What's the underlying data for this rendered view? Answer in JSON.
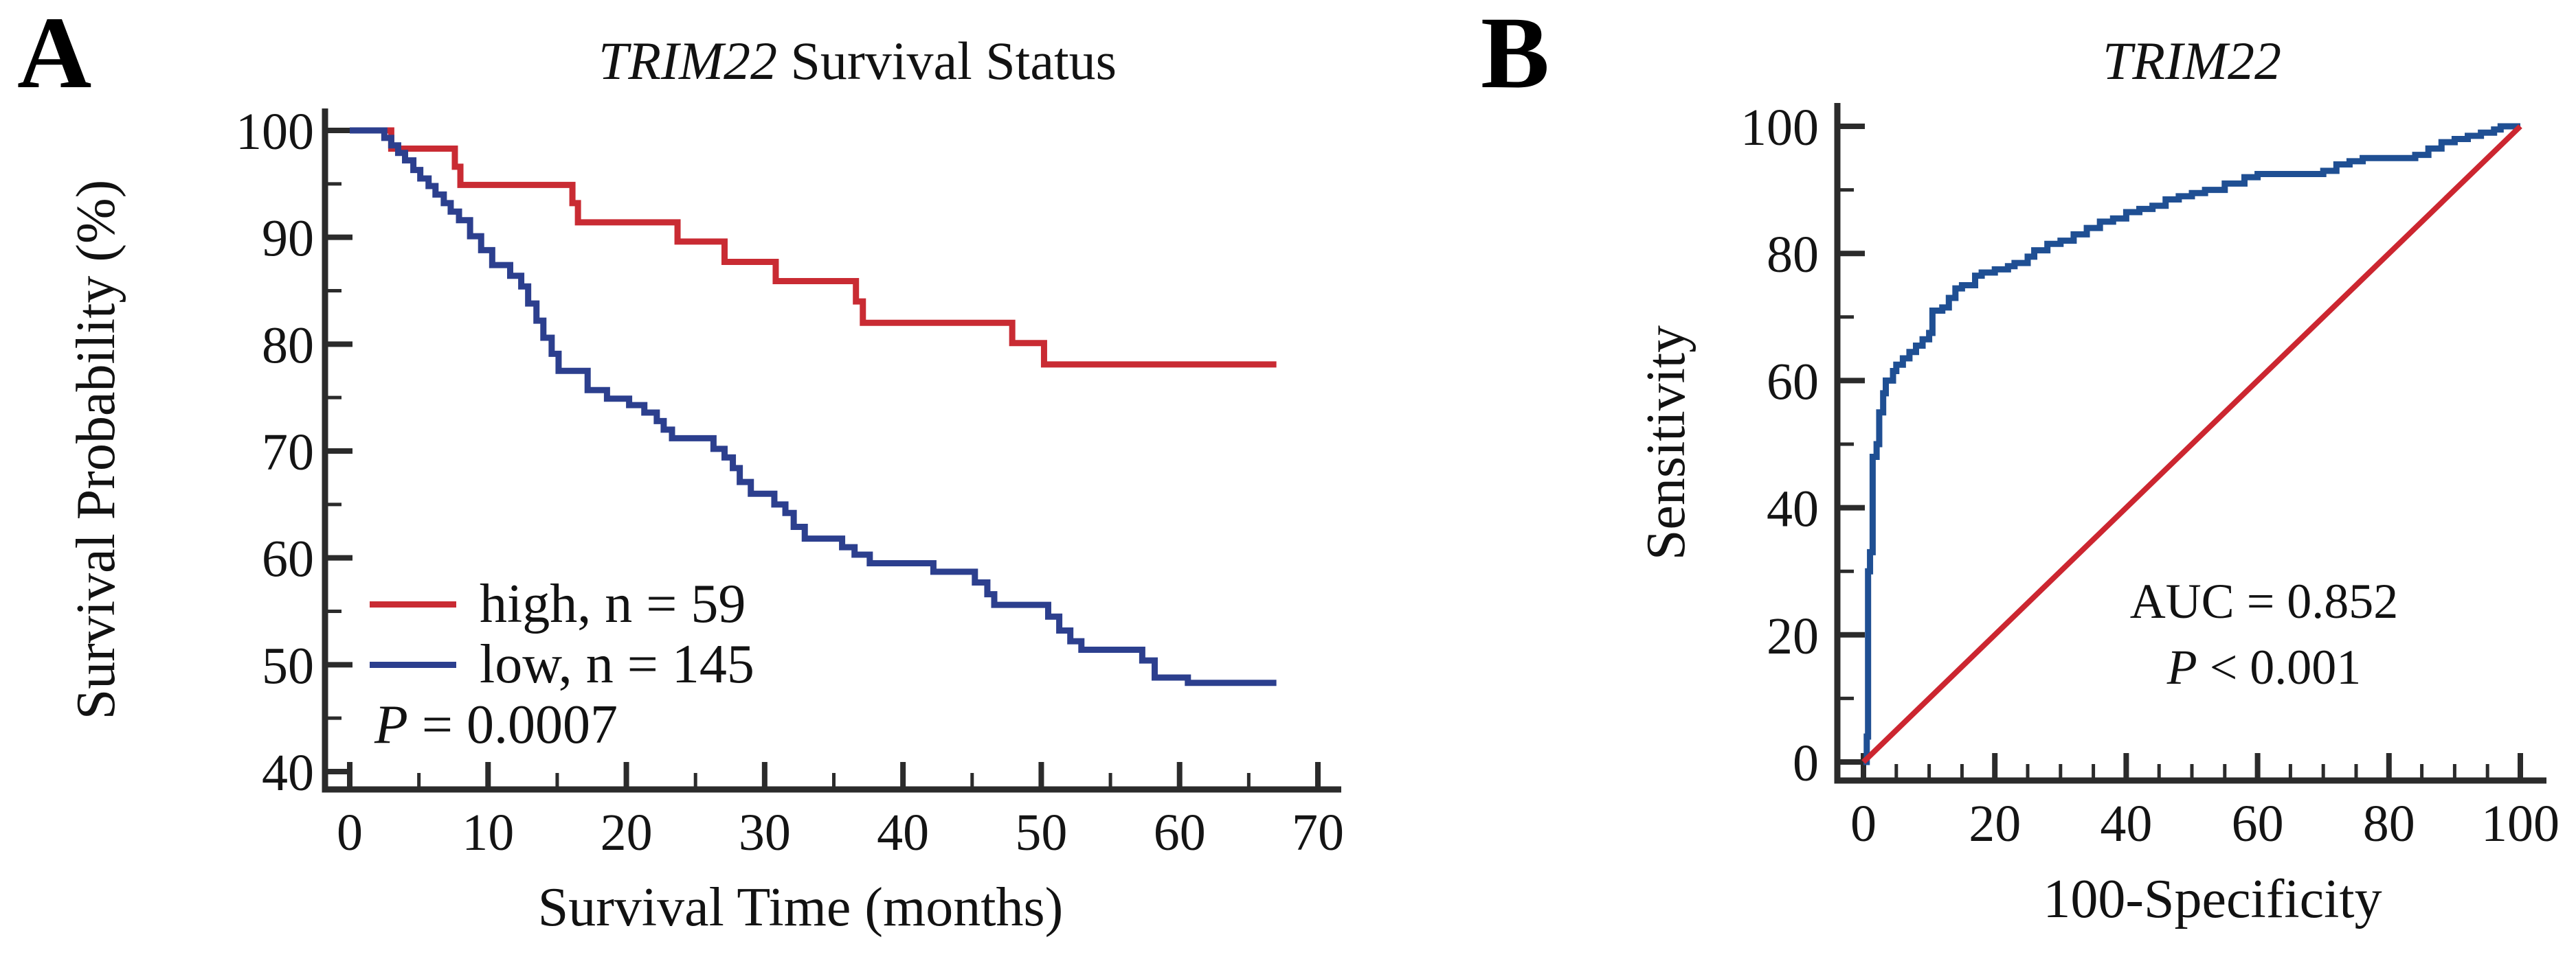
{
  "colors": {
    "km_high_red": "#c92b33",
    "km_low_blue": "#2c3f8e",
    "roc_blue": "#1f4f93",
    "reference_red": "#cc2630",
    "axis": "#2b2b2b",
    "text": "#121212"
  },
  "panels": [
    {
      "label": "A",
      "title": {
        "italic": "TRIM22",
        "rest": " Survival Status"
      },
      "x_axis_label": "Survival Time (months)",
      "y_axis_label": "Survival Probability (%)",
      "legend": [
        {
          "label": "high, n = 59"
        },
        {
          "label": "low, n = 145"
        }
      ],
      "p_value": {
        "italic": "P",
        "rest": " = 0.0007"
      }
    },
    {
      "label": "B",
      "title": {
        "italic": "TRIM22",
        "rest": ""
      },
      "x_axis_label": "100-Specificity",
      "y_axis_label": "Sensitivity",
      "annotation": {
        "auc": "AUC = 0.852",
        "p_italic": "P",
        "p_rest": " < 0.001"
      }
    }
  ],
  "chart_data": [
    {
      "type": "line",
      "subtype": "kaplan-meier-step",
      "title": "TRIM22 Survival Status",
      "xlabel": "Survival Time (months)",
      "ylabel": "Survival Probability (%)",
      "xlim": [
        0,
        70
      ],
      "ylim": [
        40,
        100
      ],
      "grid": false,
      "legend_position": "lower-left-inside",
      "x_major_ticks": [
        0,
        10,
        20,
        30,
        40,
        50,
        60,
        70
      ],
      "x_minor_ticks": [
        5,
        15,
        25,
        35,
        45,
        55,
        65
      ],
      "y_major_ticks": [
        40,
        50,
        60,
        70,
        80,
        90,
        100
      ],
      "y_minor_ticks": [
        45,
        55,
        65,
        75,
        85,
        95
      ],
      "annotation": "P = 0.0007",
      "series": [
        {
          "id": "km-high-curve",
          "name": "high, n = 59",
          "color": "#c92b33",
          "step": true,
          "points": [
            [
              0,
              100
            ],
            [
              3,
              98.3
            ],
            [
              7.6,
              96.6
            ],
            [
              8,
              94.9
            ],
            [
              16.1,
              93.2
            ],
            [
              16.5,
              91.4
            ],
            [
              23.7,
              89.6
            ],
            [
              27.1,
              87.7
            ],
            [
              30.8,
              85.9
            ],
            [
              36.6,
              84.0
            ],
            [
              37.1,
              82.0
            ],
            [
              47.9,
              80.1
            ],
            [
              50.2,
              78.1
            ],
            [
              67,
              78.1
            ]
          ]
        },
        {
          "id": "km-low-curve",
          "name": "low, n = 145",
          "color": "#2c3f8e",
          "step": true,
          "points": [
            [
              0,
              100
            ],
            [
              2.5,
              99.3
            ],
            [
              3,
              98.6
            ],
            [
              3.5,
              97.9
            ],
            [
              4,
              97.2
            ],
            [
              4.6,
              96.3
            ],
            [
              5.1,
              95.5
            ],
            [
              5.7,
              94.8
            ],
            [
              6.2,
              94.0
            ],
            [
              6.8,
              93.2
            ],
            [
              7.3,
              92.4
            ],
            [
              7.9,
              91.6
            ],
            [
              8.7,
              90.1
            ],
            [
              9.5,
              88.8
            ],
            [
              10.3,
              87.4
            ],
            [
              11.6,
              86.4
            ],
            [
              12.4,
              85.4
            ],
            [
              12.9,
              83.8
            ],
            [
              13.5,
              82.2
            ],
            [
              14.0,
              80.6
            ],
            [
              14.6,
              79.1
            ],
            [
              15.1,
              77.5
            ],
            [
              17.2,
              75.7
            ],
            [
              18.6,
              74.9
            ],
            [
              20.2,
              74.3
            ],
            [
              21.3,
              73.6
            ],
            [
              22.2,
              72.8
            ],
            [
              22.7,
              72.0
            ],
            [
              23.3,
              71.2
            ],
            [
              26.3,
              70.2
            ],
            [
              27.1,
              69.4
            ],
            [
              27.7,
              68.4
            ],
            [
              28.2,
              67.1
            ],
            [
              29.0,
              66.0
            ],
            [
              30.7,
              65.0
            ],
            [
              31.5,
              64.2
            ],
            [
              32.1,
              62.9
            ],
            [
              32.9,
              61.8
            ],
            [
              35.6,
              61.0
            ],
            [
              36.5,
              60.3
            ],
            [
              37.6,
              59.5
            ],
            [
              42.2,
              58.7
            ],
            [
              45.2,
              57.7
            ],
            [
              46.1,
              56.6
            ],
            [
              46.6,
              55.6
            ],
            [
              50.5,
              54.5
            ],
            [
              51.3,
              53.2
            ],
            [
              52.1,
              52.2
            ],
            [
              52.9,
              51.4
            ],
            [
              57.3,
              50.4
            ],
            [
              58.2,
              48.8
            ],
            [
              60.6,
              48.3
            ],
            [
              67,
              48.3
            ]
          ]
        }
      ]
    },
    {
      "type": "line",
      "subtype": "roc",
      "title": "TRIM22",
      "xlabel": "100-Specificity",
      "ylabel": "Sensitivity",
      "xlim": [
        0,
        100
      ],
      "ylim": [
        0,
        100
      ],
      "grid": false,
      "auc": 0.852,
      "p": "< 0.001",
      "x_major_ticks": [
        0,
        20,
        40,
        60,
        80,
        100
      ],
      "x_minor_ticks": [
        5,
        10,
        15,
        25,
        30,
        35,
        45,
        50,
        55,
        65,
        70,
        75,
        85,
        90,
        95
      ],
      "y_major_ticks": [
        0,
        20,
        40,
        60,
        80,
        100
      ],
      "y_minor_ticks": [
        10,
        30,
        50,
        70,
        90
      ],
      "series": [
        {
          "id": "roc-curve",
          "name": "ROC curve (TRIM22)",
          "color": "#1f4f93",
          "step": true,
          "points": [
            [
              0,
              0
            ],
            [
              0.5,
              4
            ],
            [
              0.7,
              30
            ],
            [
              1,
              33
            ],
            [
              1.4,
              48
            ],
            [
              2,
              50
            ],
            [
              2.4,
              55
            ],
            [
              3,
              58
            ],
            [
              3.4,
              60
            ],
            [
              4.5,
              61.5
            ],
            [
              5,
              62.5
            ],
            [
              6,
              63.5
            ],
            [
              7,
              64.5
            ],
            [
              8,
              65.5
            ],
            [
              9,
              66.5
            ],
            [
              10,
              67.5
            ],
            [
              10.5,
              71
            ],
            [
              12,
              71.5
            ],
            [
              13,
              73
            ],
            [
              14,
              74.5
            ],
            [
              15,
              75
            ],
            [
              17,
              76.5
            ],
            [
              18,
              77
            ],
            [
              20,
              77.5
            ],
            [
              22,
              78
            ],
            [
              23,
              78.5
            ],
            [
              25,
              79.5
            ],
            [
              26,
              80.5
            ],
            [
              28,
              81.5
            ],
            [
              30,
              82
            ],
            [
              32,
              83
            ],
            [
              34,
              84
            ],
            [
              36,
              85
            ],
            [
              38,
              85.5
            ],
            [
              40,
              86.5
            ],
            [
              42,
              87
            ],
            [
              44,
              87.5
            ],
            [
              46,
              88.5
            ],
            [
              48,
              89
            ],
            [
              50,
              89.5
            ],
            [
              52,
              90
            ],
            [
              55,
              91
            ],
            [
              58,
              92
            ],
            [
              60,
              92.5
            ],
            [
              70,
              93
            ],
            [
              72,
              94
            ],
            [
              74,
              94.5
            ],
            [
              76,
              95
            ],
            [
              84,
              95.5
            ],
            [
              86,
              96.5
            ],
            [
              88,
              97.5
            ],
            [
              90,
              98
            ],
            [
              92,
              98.5
            ],
            [
              94,
              99
            ],
            [
              96,
              99.5
            ],
            [
              97,
              100
            ],
            [
              100,
              100
            ]
          ]
        },
        {
          "id": "reference-line",
          "name": "reference diagonal",
          "color": "#cc2630",
          "step": false,
          "width": 8,
          "points": [
            [
              0,
              0
            ],
            [
              100,
              100
            ]
          ]
        }
      ]
    }
  ]
}
